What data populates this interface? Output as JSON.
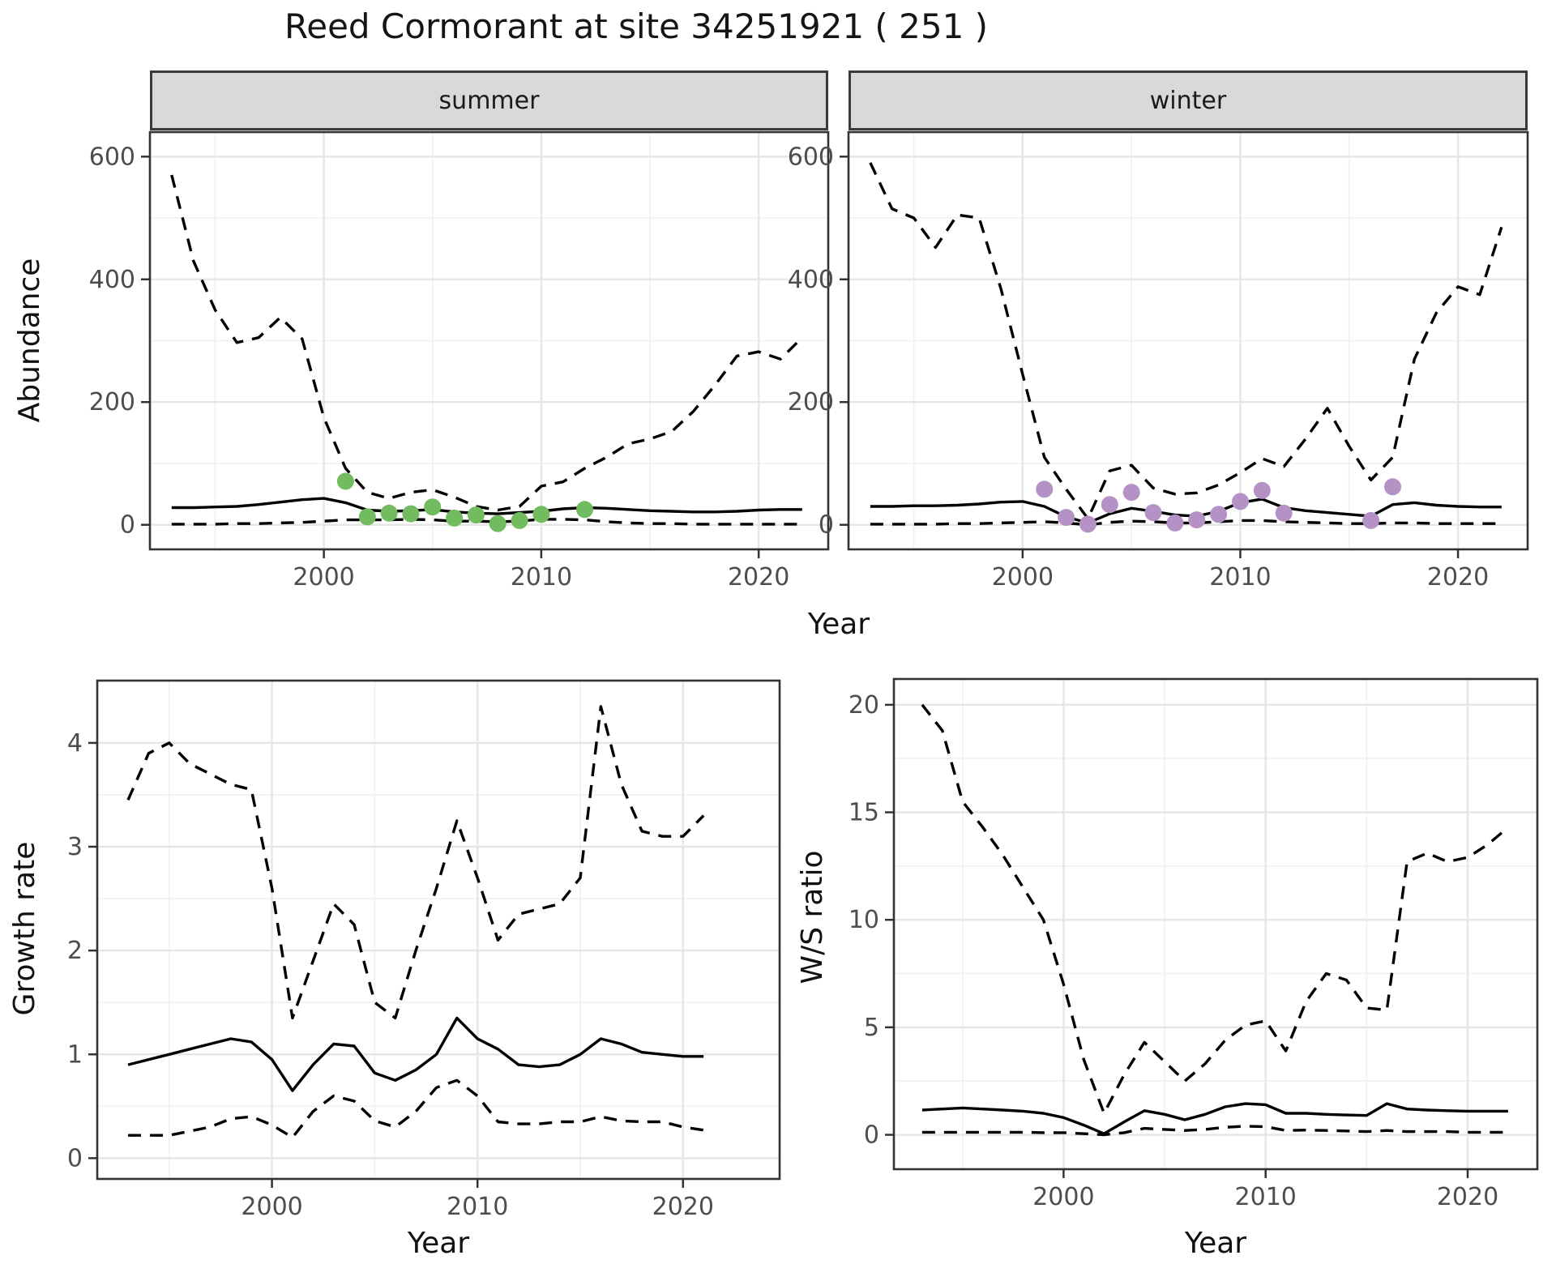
{
  "title": "Reed Cormorant at site 34251921 ( 251 )",
  "colors": {
    "summer_points": "#72BB5F",
    "winter_points": "#B592C6",
    "line": "#000000",
    "strip_bg": "#D9D9D9",
    "grid_major": "#E6E6E6",
    "grid_minor": "#F2F2F2",
    "panel_border": "#333333"
  },
  "top_row": {
    "ylabel": "Abundance",
    "xlabel": "Year",
    "facets": [
      {
        "label": "summer"
      },
      {
        "label": "winter"
      }
    ]
  },
  "bottom_row": {
    "left": {
      "ylabel": "Growth rate",
      "xlabel": "Year"
    },
    "right": {
      "ylabel": "W/S ratio",
      "xlabel": "Year"
    }
  },
  "chart_data": [
    {
      "id": "abundance-summer",
      "type": "line",
      "title": "summer",
      "xlabel": "Year",
      "ylabel": "Abundance",
      "xlim": [
        1992.0,
        2023.2
      ],
      "ylim": [
        -40,
        640
      ],
      "xticks": [
        2000,
        2010,
        2020
      ],
      "xminor": [
        1995,
        2005,
        2015
      ],
      "yticks": [
        0,
        200,
        400,
        600
      ],
      "yminor": [
        100,
        300,
        500
      ],
      "series": [
        {
          "name": "upper_95ci",
          "style": "dashed",
          "x": [
            1993,
            1994,
            1995,
            1996,
            1997,
            1998,
            1999,
            2000,
            2001,
            2002,
            2003,
            2004,
            2005,
            2006,
            2007,
            2008,
            2009,
            2010,
            2011,
            2012,
            2013,
            2014,
            2015,
            2016,
            2017,
            2018,
            2019,
            2020,
            2021,
            2022
          ],
          "y": [
            570,
            430,
            350,
            297,
            305,
            338,
            303,
            175,
            92,
            53,
            43,
            53,
            57,
            45,
            30,
            24,
            30,
            63,
            70,
            92,
            110,
            132,
            140,
            152,
            185,
            228,
            275,
            282,
            270,
            305
          ]
        },
        {
          "name": "model_mean",
          "style": "solid",
          "x": [
            1993,
            1994,
            1995,
            1996,
            1997,
            1998,
            1999,
            2000,
            2001,
            2002,
            2003,
            2004,
            2005,
            2006,
            2007,
            2008,
            2009,
            2010,
            2011,
            2012,
            2013,
            2014,
            2015,
            2016,
            2017,
            2018,
            2019,
            2020,
            2021,
            2022
          ],
          "y": [
            28,
            28,
            29,
            30,
            33,
            37,
            41,
            43,
            36,
            24,
            22,
            23,
            25,
            21,
            19,
            18,
            20,
            22,
            26,
            28,
            27,
            25,
            23,
            22,
            21,
            21,
            22,
            24,
            25,
            25
          ]
        },
        {
          "name": "lower_95ci",
          "style": "dashed",
          "x": [
            1993,
            1994,
            1995,
            1996,
            1997,
            1998,
            1999,
            2000,
            2001,
            2002,
            2003,
            2004,
            2005,
            2006,
            2007,
            2008,
            2009,
            2010,
            2011,
            2012,
            2013,
            2014,
            2015,
            2016,
            2017,
            2018,
            2019,
            2020,
            2021,
            2022
          ],
          "y": [
            1,
            1,
            1,
            2,
            2,
            3,
            4,
            6,
            8,
            8,
            8,
            9,
            8,
            6,
            6,
            5,
            6,
            9,
            9,
            8,
            5,
            3,
            2,
            2,
            1,
            1,
            1,
            1,
            1,
            1
          ]
        }
      ],
      "points": {
        "name": "observed-counts-summer",
        "color": "#72BB5F",
        "x": [
          2001,
          2002,
          2003,
          2004,
          2005,
          2006,
          2007,
          2008,
          2009,
          2010,
          2012
        ],
        "y": [
          71,
          13,
          19,
          18,
          29,
          11,
          16,
          2,
          7,
          17,
          25
        ]
      }
    },
    {
      "id": "abundance-winter",
      "type": "line",
      "title": "winter",
      "xlabel": "Year",
      "ylabel": "Abundance",
      "xlim": [
        1992.0,
        2023.2
      ],
      "ylim": [
        -40,
        640
      ],
      "xticks": [
        2000,
        2010,
        2020
      ],
      "xminor": [
        1995,
        2005,
        2015
      ],
      "yticks": [
        0,
        200,
        400,
        600
      ],
      "yminor": [
        100,
        300,
        500
      ],
      "series": [
        {
          "name": "upper_95ci",
          "style": "dashed",
          "x": [
            1993,
            1994,
            1995,
            1996,
            1997,
            1998,
            1999,
            2000,
            2001,
            2002,
            2003,
            2004,
            2005,
            2006,
            2007,
            2008,
            2009,
            2010,
            2011,
            2012,
            2013,
            2014,
            2015,
            2016,
            2017,
            2018,
            2019,
            2020,
            2021,
            2022
          ],
          "y": [
            590,
            515,
            500,
            452,
            505,
            500,
            385,
            245,
            110,
            58,
            10,
            88,
            97,
            60,
            50,
            52,
            65,
            85,
            108,
            95,
            140,
            190,
            128,
            73,
            110,
            270,
            345,
            388,
            375,
            485
          ]
        },
        {
          "name": "model_mean",
          "style": "solid",
          "x": [
            1993,
            1994,
            1995,
            1996,
            1997,
            1998,
            1999,
            2000,
            2001,
            2002,
            2003,
            2004,
            2005,
            2006,
            2007,
            2008,
            2009,
            2010,
            2011,
            2012,
            2013,
            2014,
            2015,
            2016,
            2017,
            2018,
            2019,
            2020,
            2021,
            2022
          ],
          "y": [
            30,
            30,
            31,
            31,
            32,
            34,
            37,
            38,
            30,
            13,
            3,
            18,
            27,
            22,
            16,
            14,
            22,
            36,
            42,
            28,
            23,
            20,
            17,
            14,
            33,
            36,
            32,
            30,
            29,
            29
          ]
        },
        {
          "name": "lower_95ci",
          "style": "dashed",
          "x": [
            1993,
            1994,
            1995,
            1996,
            1997,
            1998,
            1999,
            2000,
            2001,
            2002,
            2003,
            2004,
            2005,
            2006,
            2007,
            2008,
            2009,
            2010,
            2011,
            2012,
            2013,
            2014,
            2015,
            2016,
            2017,
            2018,
            2019,
            2020,
            2021,
            2022
          ],
          "y": [
            1,
            1,
            1,
            1,
            2,
            2,
            3,
            4,
            5,
            3,
            0,
            4,
            6,
            5,
            3,
            3,
            5,
            7,
            7,
            5,
            4,
            3,
            2,
            2,
            3,
            3,
            2,
            2,
            2,
            2
          ]
        }
      ],
      "points": {
        "name": "observed-counts-winter",
        "color": "#B592C6",
        "x": [
          2001,
          2002,
          2003,
          2004,
          2005,
          2006,
          2007,
          2008,
          2009,
          2010,
          2011,
          2012,
          2016,
          2017
        ],
        "y": [
          58,
          12,
          1,
          33,
          53,
          20,
          3,
          8,
          17,
          38,
          56,
          19,
          7,
          62
        ]
      }
    },
    {
      "id": "growth-rate",
      "type": "line",
      "title": "",
      "xlabel": "Year",
      "ylabel": "Growth rate",
      "xlim": [
        1991.5,
        2024.7
      ],
      "ylim": [
        -0.2,
        4.6
      ],
      "xticks": [
        2000,
        2010,
        2020
      ],
      "xminor": [
        1995,
        2005,
        2015
      ],
      "yticks": [
        0,
        1,
        2,
        3,
        4
      ],
      "yminor": [
        0.5,
        1.5,
        2.5,
        3.5
      ],
      "series": [
        {
          "name": "upper_95ci",
          "style": "dashed",
          "x": [
            1993,
            1994,
            1995,
            1996,
            1997,
            1998,
            1999,
            2000,
            2001,
            2002,
            2003,
            2004,
            2005,
            2006,
            2007,
            2008,
            2009,
            2010,
            2011,
            2012,
            2013,
            2014,
            2015,
            2016,
            2017,
            2018,
            2019,
            2020,
            2021
          ],
          "y": [
            3.45,
            3.9,
            4.0,
            3.8,
            3.7,
            3.6,
            3.55,
            2.6,
            1.35,
            1.9,
            2.45,
            2.25,
            1.5,
            1.35,
            2.0,
            2.6,
            3.25,
            2.7,
            2.1,
            2.35,
            2.4,
            2.45,
            2.7,
            4.35,
            3.6,
            3.15,
            3.1,
            3.1,
            3.3
          ]
        },
        {
          "name": "model_mean",
          "style": "solid",
          "x": [
            1993,
            1994,
            1995,
            1996,
            1997,
            1998,
            1999,
            2000,
            2001,
            2002,
            2003,
            2004,
            2005,
            2006,
            2007,
            2008,
            2009,
            2010,
            2011,
            2012,
            2013,
            2014,
            2015,
            2016,
            2017,
            2018,
            2019,
            2020,
            2021
          ],
          "y": [
            0.9,
            0.95,
            1.0,
            1.05,
            1.1,
            1.15,
            1.12,
            0.95,
            0.65,
            0.9,
            1.1,
            1.08,
            0.82,
            0.75,
            0.85,
            1.0,
            1.35,
            1.15,
            1.05,
            0.9,
            0.88,
            0.9,
            1.0,
            1.15,
            1.1,
            1.02,
            1.0,
            0.98,
            0.98
          ]
        },
        {
          "name": "lower_95ci",
          "style": "dashed",
          "x": [
            1993,
            1994,
            1995,
            1996,
            1997,
            1998,
            1999,
            2000,
            2001,
            2002,
            2003,
            2004,
            2005,
            2006,
            2007,
            2008,
            2009,
            2010,
            2011,
            2012,
            2013,
            2014,
            2015,
            2016,
            2017,
            2018,
            2019,
            2020,
            2021
          ],
          "y": [
            0.22,
            0.22,
            0.22,
            0.26,
            0.3,
            0.38,
            0.4,
            0.32,
            0.2,
            0.45,
            0.6,
            0.55,
            0.36,
            0.3,
            0.45,
            0.68,
            0.75,
            0.6,
            0.35,
            0.33,
            0.33,
            0.35,
            0.35,
            0.4,
            0.36,
            0.35,
            0.35,
            0.3,
            0.27
          ]
        }
      ]
    },
    {
      "id": "ws-ratio",
      "type": "line",
      "title": "",
      "xlabel": "Year",
      "ylabel": "W/S ratio",
      "xlim": [
        1991.6,
        2023.45
      ],
      "ylim": [
        -1.6,
        21.2
      ],
      "xticks": [
        2000,
        2010,
        2020
      ],
      "xminor": [
        1995,
        2005,
        2015
      ],
      "yticks": [
        0,
        5,
        10,
        15,
        20
      ],
      "yminor": [
        2.5,
        7.5,
        12.5,
        17.5
      ],
      "series": [
        {
          "name": "upper_95ci",
          "style": "dashed",
          "x": [
            1993,
            1994,
            1995,
            1996,
            1997,
            1998,
            1999,
            2000,
            2001,
            2002,
            2003,
            2004,
            2005,
            2006,
            2007,
            2008,
            2009,
            2010,
            2011,
            2012,
            2013,
            2014,
            2015,
            2016,
            2017,
            2018,
            2019,
            2020,
            2021,
            2022
          ],
          "y": [
            20,
            18.8,
            15.5,
            14.3,
            13.0,
            11.5,
            10.0,
            7.0,
            3.5,
            1.0,
            2.8,
            4.3,
            3.4,
            2.5,
            3.3,
            4.4,
            5.1,
            5.3,
            3.9,
            6.2,
            7.5,
            7.2,
            5.9,
            5.8,
            12.7,
            13.1,
            12.7,
            12.9,
            13.5,
            14.3
          ]
        },
        {
          "name": "model_mean",
          "style": "solid",
          "x": [
            1993,
            1994,
            1995,
            1996,
            1997,
            1998,
            1999,
            2000,
            2001,
            2002,
            2003,
            2004,
            2005,
            2006,
            2007,
            2008,
            2009,
            2010,
            2011,
            2012,
            2013,
            2014,
            2015,
            2016,
            2017,
            2018,
            2019,
            2020,
            2021,
            2022
          ],
          "y": [
            1.15,
            1.2,
            1.25,
            1.2,
            1.15,
            1.1,
            1.0,
            0.8,
            0.45,
            0.05,
            0.6,
            1.12,
            0.95,
            0.7,
            0.95,
            1.3,
            1.45,
            1.4,
            1.0,
            1.0,
            0.95,
            0.92,
            0.9,
            1.45,
            1.2,
            1.15,
            1.12,
            1.1,
            1.1,
            1.1
          ]
        },
        {
          "name": "lower_95ci",
          "style": "dashed",
          "x": [
            1993,
            1994,
            1995,
            1996,
            1997,
            1998,
            1999,
            2000,
            2001,
            2002,
            2003,
            2004,
            2005,
            2006,
            2007,
            2008,
            2009,
            2010,
            2011,
            2012,
            2013,
            2014,
            2015,
            2016,
            2017,
            2018,
            2019,
            2020,
            2021,
            2022
          ],
          "y": [
            0.12,
            0.12,
            0.12,
            0.12,
            0.12,
            0.12,
            0.1,
            0.1,
            0.05,
            0.0,
            0.1,
            0.3,
            0.25,
            0.2,
            0.25,
            0.35,
            0.4,
            0.38,
            0.2,
            0.22,
            0.2,
            0.18,
            0.15,
            0.2,
            0.15,
            0.15,
            0.15,
            0.12,
            0.12,
            0.12
          ]
        }
      ]
    }
  ]
}
